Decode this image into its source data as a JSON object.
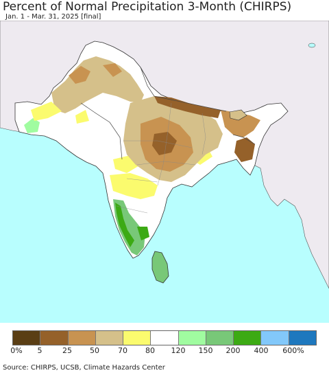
{
  "header": {
    "title": "Percent of Normal Precipitation 3-Month (CHIRPS)",
    "subtitle": "Jan. 1 - Mar. 31, 2025 [final]"
  },
  "map": {
    "ocean_color": "#b8fefe",
    "other_land_color": "#eeeaf0",
    "border_color": "#222222"
  },
  "legend": {
    "colors": [
      "#5a3e14",
      "#95612a",
      "#c89351",
      "#d5c08a",
      "#fbfb6e",
      "#ffffff",
      "#a0fca0",
      "#78c878",
      "#3caa14",
      "#82c8fa",
      "#1e78be"
    ],
    "ticks": [
      "0%",
      "5",
      "25",
      "50",
      "70",
      "80",
      "120",
      "150",
      "200",
      "400",
      "600%"
    ]
  },
  "footer": {
    "source": "Source: CHIRPS, UCSB, Climate Hazards Center"
  }
}
